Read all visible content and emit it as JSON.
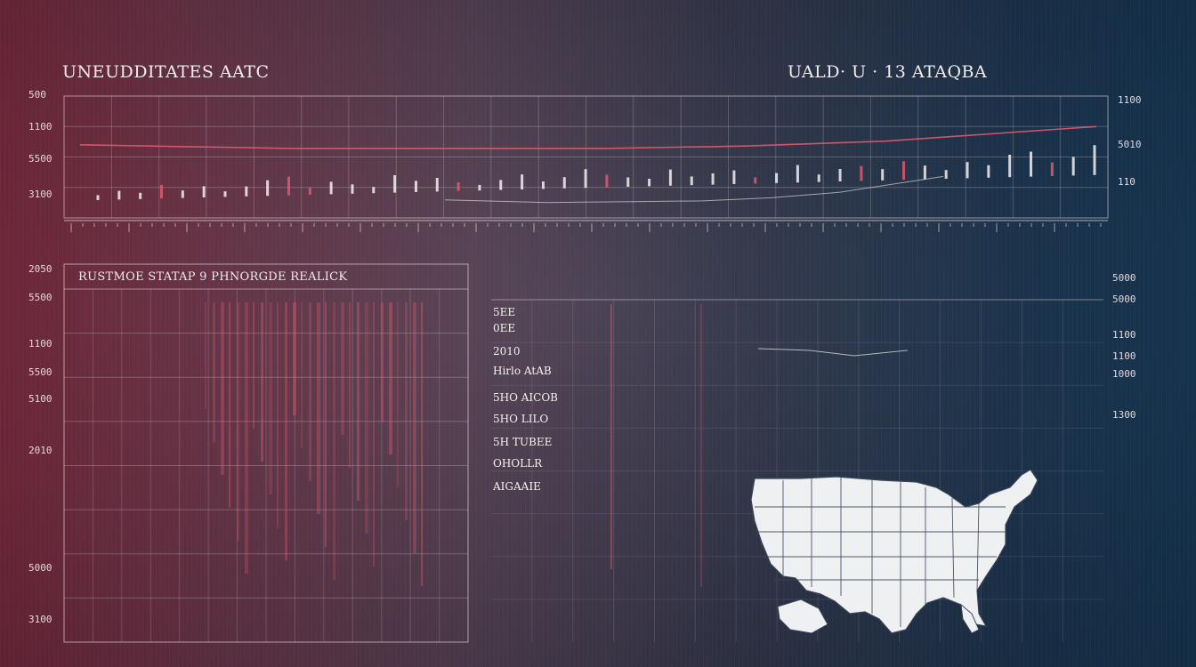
{
  "titles": {
    "top_left": "UNEUDDITATES AATC",
    "top_right": "UALD· U · 13 ATAQBA",
    "panel": "RUSTMOE STATAP 9 PHNORGDE REALICK"
  },
  "y_labels_top_left": [
    "500",
    "1100",
    "5500",
    "3100"
  ],
  "y_labels_top_right": [
    "1100",
    "5010",
    "110"
  ],
  "y_labels_left": [
    "2050",
    "5500",
    "1100",
    "5500",
    "5100",
    "2010",
    "5000",
    "3100"
  ],
  "y_labels_right_col": [
    "5000",
    "5000",
    "1100",
    "1100",
    "1000",
    "1300"
  ],
  "middle_labels": [
    "5EE",
    "0EE",
    "2010",
    "Hirlo AtAB",
    "5HO AICOB",
    "5HO LILO",
    "5H TUBEE",
    "OHOLLR",
    "AIGAAIE"
  ],
  "colors": {
    "accent_red": "#e05a6e",
    "grid": "#f1e6ea",
    "map_fill": "#eef0f2",
    "map_stroke": "#3a4658"
  },
  "chart_data": {
    "type": "line",
    "title": "UNEUDDITATES AATC",
    "series": [
      {
        "values": [
          60,
          59.5,
          59,
          58.5,
          58,
          57.5,
          57,
          57,
          57,
          57,
          57,
          57,
          57,
          57,
          57,
          57,
          57.5,
          58,
          58.5,
          59,
          60,
          61,
          62,
          63,
          65,
          67,
          69,
          71,
          73,
          75
        ]
      }
    ],
    "bars": [
      8,
      14,
      10,
      22,
      12,
      18,
      9,
      16,
      25,
      30,
      12,
      20,
      15,
      10,
      28,
      18,
      22,
      14,
      9,
      16,
      24,
      12,
      18,
      30,
      20,
      15,
      12,
      26,
      14,
      18,
      22,
      10,
      16,
      28,
      12,
      20,
      24,
      18,
      30,
      22,
      14,
      26,
      20,
      36,
      40,
      22,
      30,
      48
    ],
    "ylim": [
      0,
      100
    ]
  },
  "map": {
    "label": "United States"
  }
}
